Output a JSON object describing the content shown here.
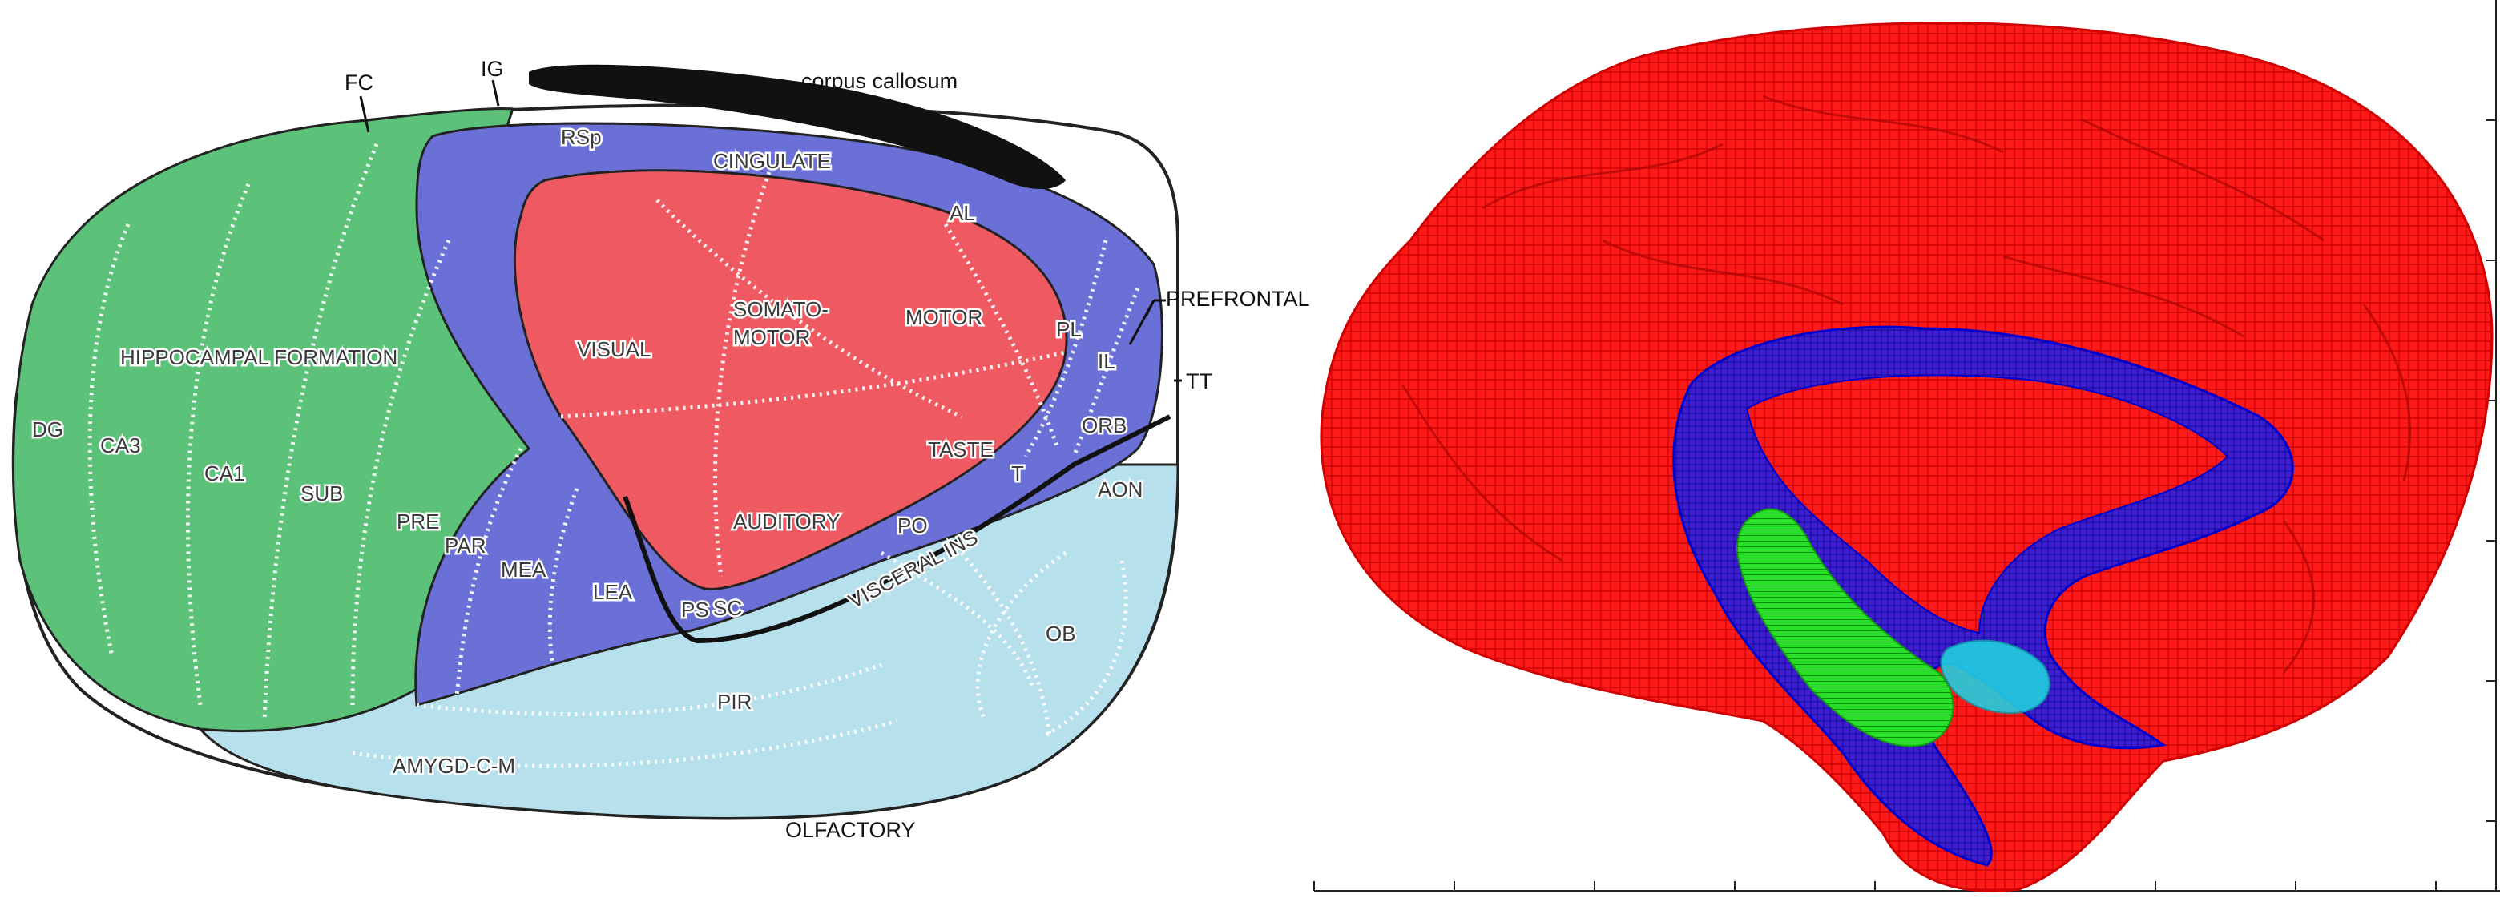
{
  "left_panel": {
    "labels": {
      "corpus_callosum": "corpus callosum",
      "fc": "FC",
      "ig": "IG",
      "prefrontal": "PREFRONTAL",
      "tt": "TT",
      "olfactory": "OLFACTORY",
      "rsp": "RSp",
      "cingulate": "CINGULATE",
      "al": "AL",
      "pl": "PL",
      "il": "IL",
      "orb": "ORB",
      "aon": "AON",
      "ob": "OB",
      "pir": "PIR",
      "amygd": "AMYGD-C-M",
      "hippocampal_formation": "HIPPOCAMPAL FORMATION",
      "dg": "DG",
      "ca3": "CA3",
      "ca1": "CA1",
      "sub": "SUB",
      "pre": "PRE",
      "par": "PAR",
      "mea": "MEA",
      "lea": "LEA",
      "visual": "VISUAL",
      "somatomotor_1": "SOMATO-",
      "somatomotor_2": "MOTOR",
      "motor": "MOTOR",
      "taste": "TASTE",
      "auditory": "AUDITORY",
      "visceral_ins": "VISCERAL INS",
      "ps": "PS",
      "sc": "SC",
      "po": "PO",
      "t_small": "T"
    },
    "colors": {
      "hippocampal": "#5cc27a",
      "cortex_blue": "#6b70d6",
      "sensory_red": "#ef5a62",
      "olfactory": "#b6e0ec",
      "callosum": "#111111"
    }
  },
  "right_panel": {
    "colors": {
      "cortex_mesh": "#ff0000",
      "limbic_mesh": "#1c1cf0",
      "hippocampus_mesh": "#22dd22",
      "amygdala_mesh": "#22cfe0"
    }
  }
}
